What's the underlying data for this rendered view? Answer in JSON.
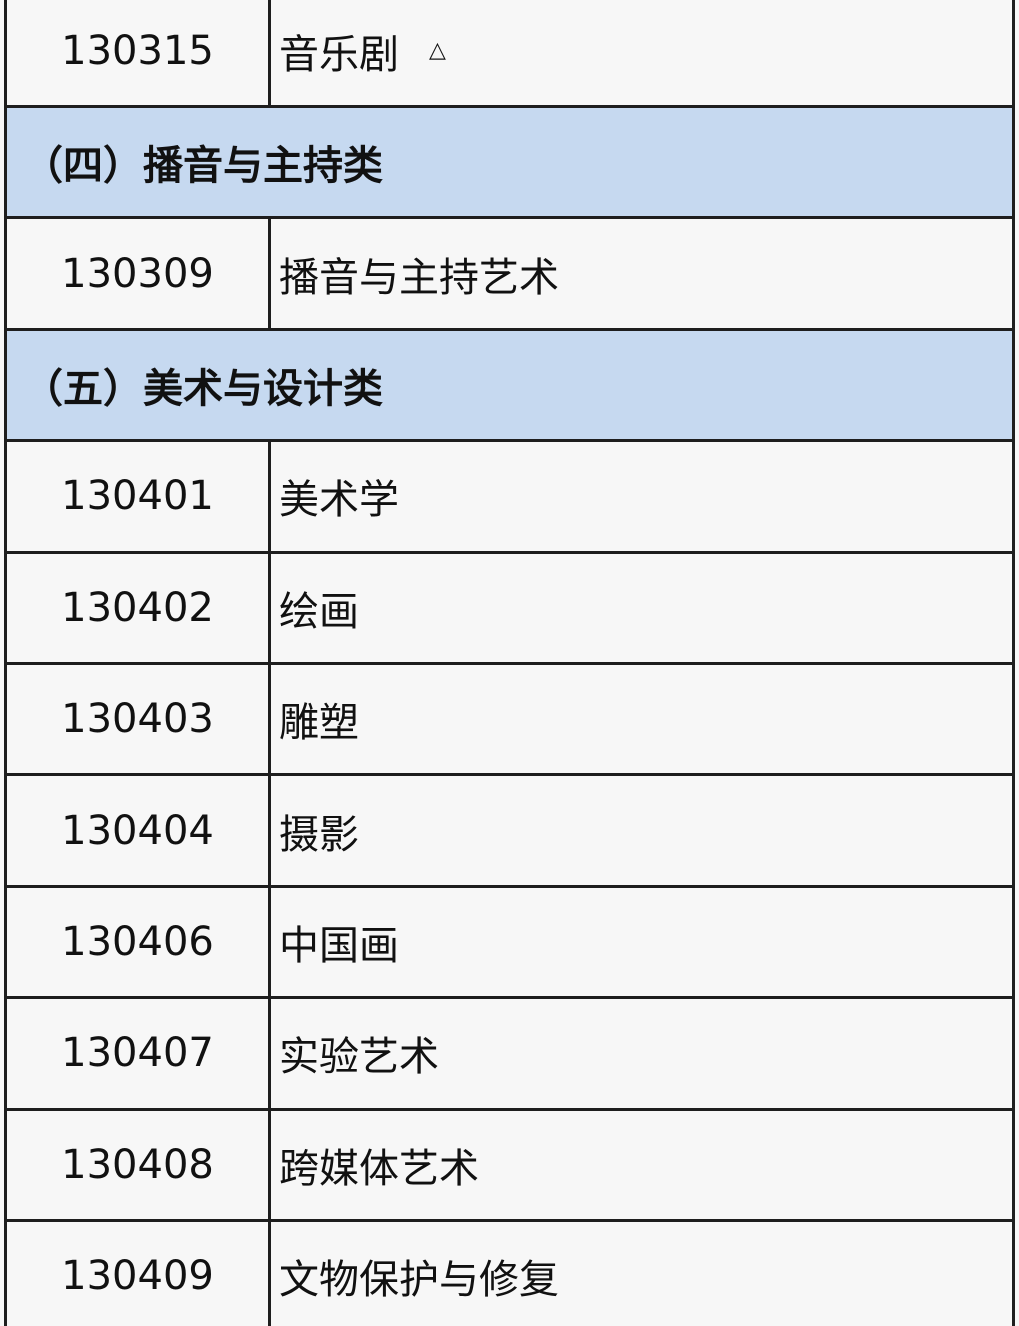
{
  "table": {
    "rows": [
      {
        "code": "130315",
        "name": "音乐剧",
        "mark": "△"
      },
      {
        "section": "（四）播音与主持类"
      },
      {
        "code": "130309",
        "name": "播音与主持艺术"
      },
      {
        "section": "（五）美术与设计类"
      },
      {
        "code": "130401",
        "name": "美术学"
      },
      {
        "code": "130402",
        "name": "绘画"
      },
      {
        "code": "130403",
        "name": "雕塑"
      },
      {
        "code": "130404",
        "name": "摄影"
      },
      {
        "code": "130406",
        "name": "中国画"
      },
      {
        "code": "130407",
        "name": "实验艺术"
      },
      {
        "code": "130408",
        "name": "跨媒体艺术"
      },
      {
        "code": "130409",
        "name": "文物保护与修复"
      }
    ]
  }
}
